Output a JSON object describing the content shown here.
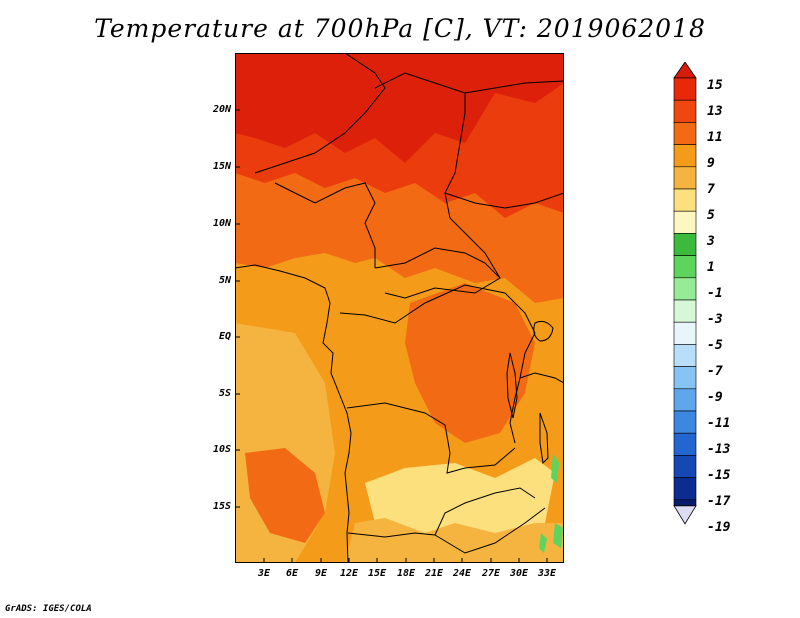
{
  "title": "Temperature at 700hPa [C], VT: 2019062018",
  "footer": "GrADS: IGES/COLA",
  "y_ticks": [
    "20N",
    "15N",
    "10N",
    "5N",
    "EQ",
    "5S",
    "10S",
    "15S"
  ],
  "x_ticks": [
    "3E",
    "6E",
    "9E",
    "12E",
    "15E",
    "18E",
    "21E",
    "24E",
    "27E",
    "30E",
    "33E"
  ],
  "colorbar": {
    "labels": [
      "15",
      "13",
      "11",
      "9",
      "7",
      "5",
      "3",
      "1",
      "-1",
      "-3",
      "-5",
      "-7",
      "-9",
      "-11",
      "-13",
      "-15",
      "-17",
      "-19"
    ],
    "colors": [
      "#e8280b",
      "#f0460f",
      "#f26a14",
      "#f49b1a",
      "#f5b43f",
      "#fde07e",
      "#fff7c0",
      "#3cba3c",
      "#5ed45e",
      "#96ec96",
      "#d6f8d6",
      "#e8f6fc",
      "#b8defa",
      "#86c4f4",
      "#5fa6ec",
      "#3c87e0",
      "#2466d0",
      "#1648b4",
      "#0c2c90",
      "#071c6c"
    ],
    "top_color": "#d81a0a",
    "bottom_color": "#dcdcf4"
  },
  "colors": {
    "deep_red": "#dc2009",
    "red": "#ea3c0d",
    "orange_red": "#f26a14",
    "orange": "#f49b1a",
    "light_orange": "#f5b43f",
    "yellow": "#fde07e",
    "green": "#5ed45e"
  }
}
